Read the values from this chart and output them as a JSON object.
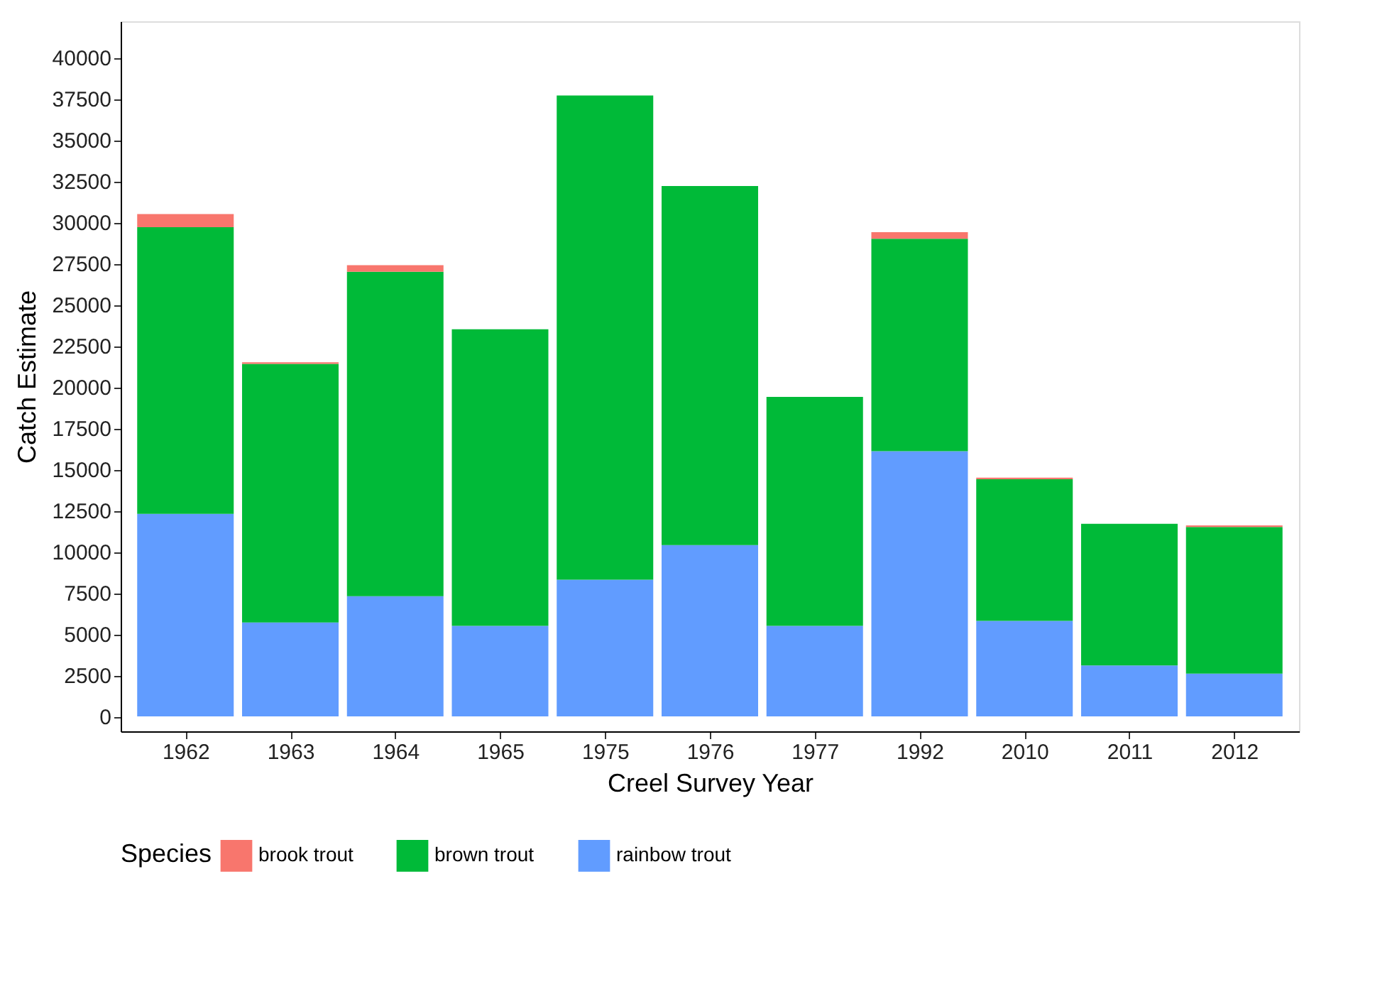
{
  "chart_data": {
    "type": "bar",
    "stacked": true,
    "xlabel": "Creel Survey Year",
    "ylabel": "Catch Estimate",
    "legend_title": "Species",
    "legend": "bottom",
    "grid": false,
    "categories": [
      "1962",
      "1963",
      "1964",
      "1965",
      "1975",
      "1976",
      "1977",
      "1992",
      "2010",
      "2011",
      "2012"
    ],
    "ylim": [
      -900,
      42200
    ],
    "yticks": [
      0,
      2500,
      5000,
      7500,
      10000,
      12500,
      15000,
      17500,
      20000,
      22500,
      25000,
      27500,
      30000,
      32500,
      35000,
      37500,
      40000
    ],
    "series": [
      {
        "name": "rainbow trout",
        "color": "#619cff",
        "values": [
          12300,
          5700,
          7300,
          5500,
          8300,
          10400,
          5500,
          16100,
          5800,
          3100,
          2600
        ]
      },
      {
        "name": "brown trout",
        "color": "#00ba38",
        "values": [
          17400,
          15700,
          19700,
          18000,
          29400,
          21800,
          13900,
          12900,
          8600,
          8600,
          8900
        ]
      },
      {
        "name": "brook trout",
        "color": "#f8766d",
        "values": [
          800,
          100,
          400,
          0,
          0,
          0,
          0,
          400,
          100,
          0,
          100
        ]
      }
    ]
  }
}
